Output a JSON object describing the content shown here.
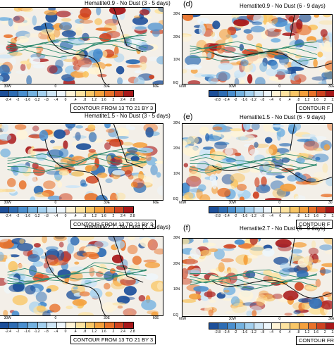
{
  "panels": [
    {
      "id": "a",
      "label": "",
      "title": "Hematite0.9 - No Dust (3 - 5 days)",
      "lon_ticks": [
        "30W",
        "0",
        "30E",
        "60E"
      ],
      "lat_ticks": [],
      "colorbar_ticks": [
        "-2.4",
        "-2",
        "-1.6",
        "-1.2",
        "-.8",
        "-.4",
        "0",
        ".4",
        ".8",
        "1.2",
        "1.6",
        "2",
        "2.4",
        "2.8"
      ],
      "contour_note": "CONTOUR FROM 13 TO 21 BY 3"
    },
    {
      "id": "d",
      "label": "(d)",
      "title": "Hematite0.9 - No Dust (6 - 9 days)",
      "lon_ticks": [
        "60W",
        "30W",
        "0",
        "30E"
      ],
      "lat_ticks": [
        "30N",
        "20N",
        "10N",
        "EQ"
      ],
      "colorbar_ticks": [
        "-2.8",
        "-2.4",
        "-2",
        "-1.6",
        "-1.2",
        "-.8",
        "-.4",
        "0",
        ".4",
        ".8",
        "1.2",
        "1.6",
        "2",
        "2.4"
      ],
      "contour_note": "CONTOUR F"
    },
    {
      "id": "b",
      "label": "",
      "title": "Hematite1.5 - No Dust (3 - 5 days)",
      "lon_ticks": [
        "30W",
        "0",
        "30E",
        "60E"
      ],
      "lat_ticks": [],
      "colorbar_ticks": [
        "-2.4",
        "-2",
        "-1.6",
        "-1.2",
        "-.8",
        "-.4",
        "0",
        ".4",
        ".8",
        "1.2",
        "1.6",
        "2",
        "2.4",
        "2.8"
      ],
      "contour_note": "CONTOUR FROM 13 TO 21 BY 3"
    },
    {
      "id": "e",
      "label": "(e)",
      "title": "Hematite1.5 - No Dust (6 - 9 days)",
      "lon_ticks": [
        "60W",
        "30W",
        "0",
        "30"
      ],
      "lat_ticks": [
        "30N",
        "20N",
        "10N",
        "EQ"
      ],
      "colorbar_ticks": [
        "-2.8",
        "-2.4",
        "-2",
        "-1.6",
        "-1.2",
        "-.8",
        "-.4",
        "0",
        ".4",
        ".8",
        "1.2",
        "1.6",
        "2",
        "2.4"
      ],
      "contour_note": "CONTOUR F"
    },
    {
      "id": "c",
      "label": "",
      "title": "Hematite2.7 - No Dust (3 - 5 days)",
      "lon_ticks": [
        "30W",
        "0",
        "30E",
        "60E"
      ],
      "lat_ticks": [],
      "colorbar_ticks": [
        "-2.4",
        "-2",
        "-1.6",
        "-1.2",
        "-.8",
        "-.4",
        "0",
        ".4",
        ".8",
        "1.2",
        "1.6",
        "2",
        "2.4",
        "2.8"
      ],
      "contour_note": "CONTOUR FROM 13 TO 21 BY 3"
    },
    {
      "id": "f",
      "label": "(f)",
      "title": "Hematite2.7 - No Dust (6 - 9 days)",
      "lon_ticks": [
        "60W",
        "30W",
        "0",
        "30E"
      ],
      "lat_ticks": [
        "30N",
        "20N",
        "10N",
        "EQ"
      ],
      "colorbar_ticks": [
        "-2.8",
        "-2.4",
        "-2",
        "-1.6",
        "-1.2",
        "-.8",
        "-.4",
        "0",
        ".4",
        ".8",
        "1.2",
        "1.6",
        "2",
        "2.4"
      ],
      "contour_note": "CONTOUR FRO"
    }
  ],
  "colorbar_colors": [
    "#1c4f9a",
    "#2e6db4",
    "#4a8fcf",
    "#74b2e0",
    "#a3d0ef",
    "#cfe6f6",
    "#eef6fb",
    "#fff4d6",
    "#fde3a0",
    "#f9c666",
    "#f4a03d",
    "#e8722a",
    "#cf4321",
    "#a8181a"
  ],
  "contour_color": "#2f8a6e",
  "coast_color": "#111111"
}
